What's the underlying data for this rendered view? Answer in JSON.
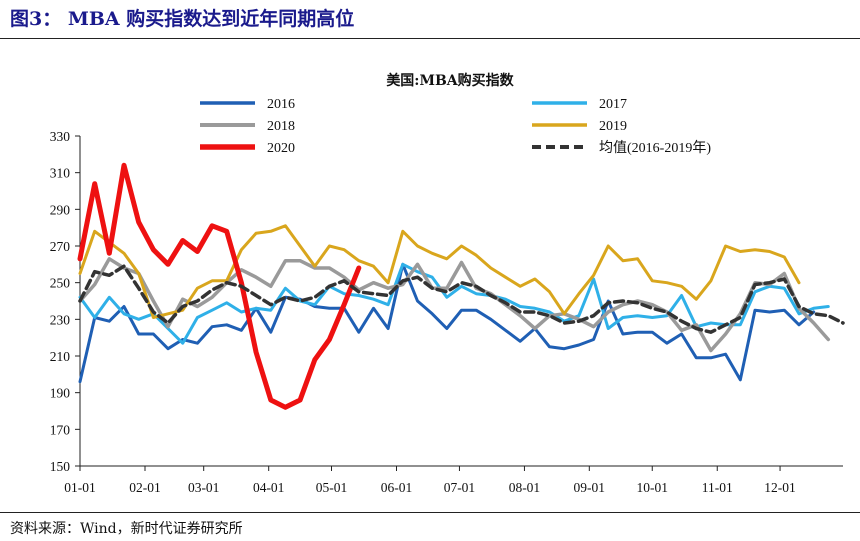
{
  "figure_title": "图3： MBA 购买指数达到近年同期高位",
  "source": "资料来源：Wind，新时代证券研究所",
  "chart_data": {
    "type": "line",
    "title": "美国:MBA购买指数",
    "xlabel": "",
    "ylabel": "",
    "ylim": [
      150,
      330
    ],
    "yticks": [
      150,
      170,
      190,
      210,
      230,
      250,
      270,
      290,
      310,
      330
    ],
    "xlim": [
      1,
      53
    ],
    "x_tick_labels": [
      "01-01",
      "02-01",
      "03-01",
      "04-01",
      "05-01",
      "06-01",
      "07-01",
      "08-01",
      "09-01",
      "10-01",
      "11-01",
      "12-01"
    ],
    "x_tick_weeks": [
      1,
      5.43,
      9.43,
      13.86,
      18.14,
      22.57,
      26.86,
      31.29,
      35.71,
      40,
      44.43,
      48.71
    ],
    "x_unit": "week of year",
    "grid": false,
    "legend_position": "top",
    "series": [
      {
        "name": "2016",
        "color": "#1f5fb4",
        "dash": "solid",
        "width": 3,
        "values": [
          196,
          231,
          229,
          237,
          222,
          222,
          214,
          219,
          217,
          226,
          227,
          224,
          236,
          223,
          242,
          241,
          237,
          236,
          236,
          223,
          236,
          225,
          260,
          240,
          233,
          225,
          235,
          235,
          230,
          224,
          218,
          225,
          215,
          214,
          216,
          219,
          240,
          222,
          223,
          223,
          217,
          222,
          209,
          209,
          211,
          197,
          235,
          234,
          235,
          227,
          234
        ]
      },
      {
        "name": "2017",
        "color": "#2fb0e8",
        "dash": "solid",
        "width": 3,
        "values": [
          242,
          231,
          242,
          233,
          230,
          233,
          225,
          217,
          231,
          235,
          239,
          234,
          236,
          235,
          247,
          240,
          238,
          248,
          244,
          243,
          241,
          238,
          260,
          256,
          253,
          242,
          248,
          244,
          243,
          241,
          237,
          236,
          234,
          229,
          232,
          252,
          225,
          231,
          232,
          231,
          232,
          243,
          226,
          228,
          227,
          227,
          245,
          248,
          247,
          233,
          236,
          237
        ]
      },
      {
        "name": "2018",
        "color": "#9a9a9a",
        "dash": "solid",
        "width": 3.5,
        "values": [
          240,
          249,
          263,
          258,
          255,
          240,
          226,
          241,
          237,
          242,
          250,
          257,
          253,
          248,
          262,
          262,
          258,
          258,
          253,
          246,
          250,
          247,
          249,
          260,
          247,
          247,
          261,
          247,
          244,
          238,
          232,
          225,
          232,
          233,
          230,
          226,
          234,
          238,
          240,
          238,
          234,
          224,
          227,
          213,
          222,
          233,
          250,
          249,
          255,
          236,
          228,
          219
        ]
      },
      {
        "name": "2019",
        "color": "#d9a61d",
        "dash": "solid",
        "width": 3,
        "values": [
          255,
          278,
          272,
          266,
          255,
          231,
          233,
          235,
          247,
          251,
          251,
          268,
          277,
          278,
          281,
          270,
          259,
          270,
          268,
          262,
          259,
          250,
          278,
          270,
          266,
          263,
          270,
          265,
          258,
          253,
          248,
          252,
          245,
          233,
          244,
          254,
          270,
          262,
          263,
          251,
          250,
          248,
          241,
          251,
          270,
          267,
          268,
          267,
          264,
          250
        ]
      },
      {
        "name": "2020",
        "color": "#ee1111",
        "dash": "solid",
        "width": 5,
        "values": [
          263,
          304,
          266,
          314,
          283,
          268,
          260,
          273,
          267,
          281,
          278,
          250,
          212,
          186,
          182,
          186,
          208,
          219,
          238,
          258
        ]
      },
      {
        "name": "均值(2016-2019年)",
        "color": "#333333",
        "dash": "dashed",
        "width": 3.5,
        "values": [
          240,
          256,
          254,
          259,
          247,
          234,
          228,
          237,
          240,
          246,
          250,
          248,
          243,
          238,
          242,
          240,
          242,
          248,
          251,
          245,
          244,
          243,
          251,
          253,
          247,
          245,
          250,
          248,
          243,
          239,
          234,
          234,
          232,
          228,
          229,
          232,
          239,
          240,
          239,
          236,
          234,
          229,
          225,
          223,
          227,
          231,
          249,
          250,
          252,
          237,
          233,
          232,
          228
        ]
      }
    ]
  }
}
